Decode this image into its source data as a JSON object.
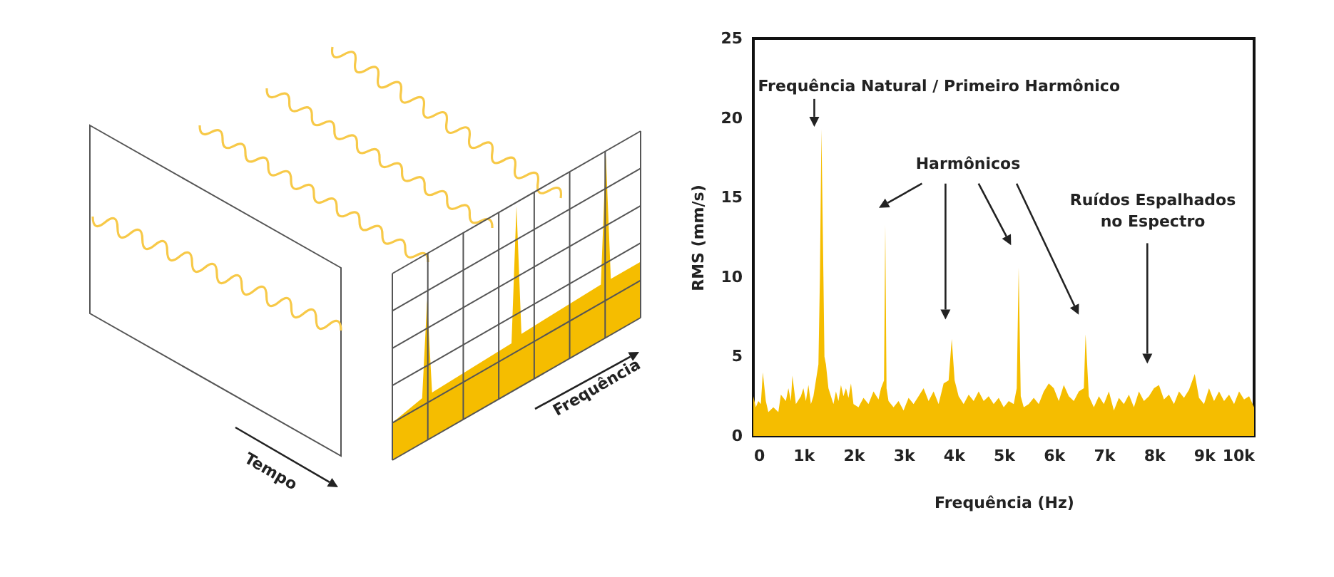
{
  "chart_data": {
    "type": "area",
    "xlabel": "Frequência (Hz)",
    "ylabel": "RMS (mm/s)",
    "x": [
      0,
      50,
      100,
      150,
      190,
      250,
      300,
      400,
      500,
      550,
      650,
      700,
      750,
      780,
      850,
      950,
      1000,
      1050,
      1100,
      1150,
      1200,
      1250,
      1300,
      1330,
      1360,
      1400,
      1420,
      1450,
      1500,
      1550,
      1600,
      1650,
      1700,
      1750,
      1800,
      1850,
      1900,
      1950,
      2000,
      2100,
      2200,
      2300,
      2400,
      2500,
      2550,
      2610,
      2635,
      2660,
      2700,
      2800,
      2900,
      3000,
      3100,
      3200,
      3300,
      3400,
      3500,
      3600,
      3700,
      3800,
      3900,
      3962,
      4020,
      4100,
      4200,
      4300,
      4400,
      4500,
      4600,
      4700,
      4800,
      4900,
      5000,
      5100,
      5200,
      5260,
      5299,
      5340,
      5400,
      5500,
      5600,
      5700,
      5800,
      5900,
      6000,
      6100,
      6200,
      6300,
      6400,
      6500,
      6600,
      6635,
      6700,
      6800,
      6900,
      7000,
      7100,
      7200,
      7300,
      7400,
      7500,
      7600,
      7700,
      7800,
      7900,
      8000,
      8100,
      8200,
      8300,
      8400,
      8500,
      8600,
      8700,
      8815,
      8900,
      9000,
      9100,
      9200,
      9300,
      9400,
      9500,
      9600,
      9700,
      9800,
      9900,
      10000
    ],
    "values": [
      2.5,
      1.8,
      2.2,
      2.0,
      4.0,
      2.2,
      1.5,
      1.8,
      1.5,
      2.6,
      2.2,
      3.0,
      2.2,
      3.8,
      2.0,
      2.5,
      3.0,
      2.2,
      3.2,
      2.0,
      2.5,
      3.5,
      4.5,
      10,
      19.3,
      10,
      5,
      4.5,
      3.0,
      2.5,
      2.0,
      2.8,
      2.2,
      3.2,
      2.5,
      3.0,
      2.4,
      3.3,
      2.0,
      1.8,
      2.4,
      2.0,
      2.8,
      2.3,
      3.0,
      3.5,
      13.3,
      3.0,
      2.2,
      1.8,
      2.2,
      1.6,
      2.4,
      2.0,
      2.5,
      3.0,
      2.2,
      2.8,
      2.0,
      3.3,
      3.5,
      6.1,
      3.5,
      2.5,
      2.0,
      2.6,
      2.2,
      2.8,
      2.2,
      2.5,
      2.0,
      2.4,
      1.8,
      2.2,
      2.0,
      3.0,
      10.6,
      2.5,
      1.8,
      2.0,
      2.4,
      2.0,
      2.8,
      3.3,
      3.0,
      2.2,
      3.2,
      2.5,
      2.2,
      2.8,
      3.0,
      6.4,
      2.5,
      1.8,
      2.5,
      2.0,
      2.8,
      1.6,
      2.4,
      2.0,
      2.6,
      1.8,
      2.8,
      2.2,
      2.5,
      3.0,
      3.2,
      2.3,
      2.6,
      2.0,
      2.8,
      2.4,
      2.9,
      3.9,
      2.4,
      2.0,
      3.0,
      2.2,
      2.8,
      2.2,
      2.6,
      2.0,
      2.8,
      2.3,
      2.5,
      1.8
    ],
    "color": "#f5bd00",
    "xlim": [
      0,
      10000
    ],
    "xticks": [
      0,
      {
        "value": 1000,
        "label": "1k"
      },
      {
        "value": 2000,
        "label": "2k"
      },
      {
        "value": 3000,
        "label": "3k"
      },
      {
        "value": 4000,
        "label": "4k"
      },
      {
        "value": 5000,
        "label": "5k"
      },
      {
        "value": 6000,
        "label": "6k"
      },
      {
        "value": 7000,
        "label": "7k"
      },
      {
        "value": 8000,
        "label": "8k"
      },
      {
        "value": 9000,
        "label": "9k"
      },
      {
        "value": 10000,
        "label": "10k"
      }
    ],
    "ylim": [
      0,
      25
    ],
    "yticks": [
      0,
      5,
      10,
      15,
      20,
      25
    ],
    "annotations": [
      "Frequência Natural / Primeiro Harmônico",
      "Harmônicos",
      "Ruídos Espalhados\nno Espectro",
      "Tempo",
      "Frequência"
    ]
  }
}
